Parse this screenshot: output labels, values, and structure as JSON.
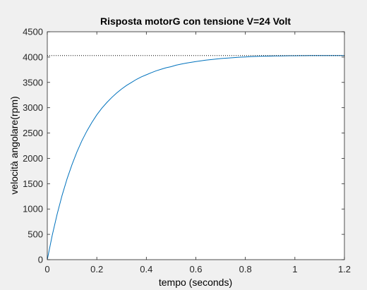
{
  "chart_data": {
    "type": "line",
    "title": "Risposta motorG con tensione V=24 Volt",
    "xlabel": "tempo (seconds)",
    "ylabel": "velocità angolare(rpm)",
    "xlim": [
      0,
      1.2
    ],
    "ylim": [
      0,
      4500
    ],
    "xticks": [
      "0",
      "0.2",
      "0.4",
      "0.6",
      "0.8",
      "1",
      "1.2"
    ],
    "yticks": [
      "0",
      "500",
      "1000",
      "1500",
      "2000",
      "2500",
      "3000",
      "3500",
      "4000",
      "4500"
    ],
    "grid": false,
    "steady_state_value": 4030,
    "series": [
      {
        "color": "#0072bd",
        "x": [
          0,
          0.02,
          0.04,
          0.06,
          0.08,
          0.1,
          0.12,
          0.14,
          0.16,
          0.18,
          0.2,
          0.22,
          0.24,
          0.26,
          0.28,
          0.3,
          0.32,
          0.34,
          0.36,
          0.38,
          0.4,
          0.42,
          0.44,
          0.46,
          0.48,
          0.5,
          0.52,
          0.54,
          0.56,
          0.58,
          0.6,
          0.62,
          0.64,
          0.66,
          0.68,
          0.7,
          0.72,
          0.74,
          0.76,
          0.78,
          0.8,
          0.82,
          0.84,
          0.86,
          0.88,
          0.9,
          0.92,
          0.94,
          0.96,
          0.98,
          1.0,
          1.02,
          1.04,
          1.06,
          1.08,
          1.1,
          1.12,
          1.14,
          1.16,
          1.18,
          1.2
        ],
        "y": [
          0,
          480,
          900,
          1270,
          1600,
          1880,
          2130,
          2350,
          2540,
          2710,
          2860,
          2990,
          3100,
          3200,
          3290,
          3370,
          3440,
          3500,
          3560,
          3610,
          3650,
          3690,
          3730,
          3760,
          3790,
          3810,
          3840,
          3860,
          3880,
          3895,
          3910,
          3925,
          3940,
          3950,
          3960,
          3970,
          3978,
          3985,
          3992,
          3998,
          4003,
          4008,
          4012,
          4015,
          4018,
          4020,
          4022,
          4024,
          4025,
          4026,
          4027,
          4028,
          4028,
          4029,
          4029,
          4029,
          4030,
          4030,
          4030,
          4030,
          4030
        ]
      }
    ]
  }
}
